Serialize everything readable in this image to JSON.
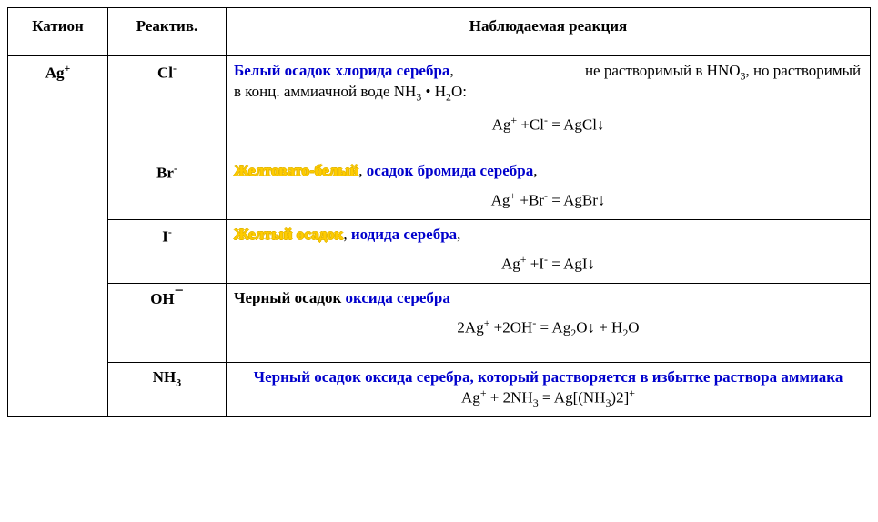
{
  "headers": {
    "cation": "Катион",
    "reagent": "Реактив.",
    "reaction": "Наблюдаемая реакция"
  },
  "cation": "Ag+",
  "rows": [
    {
      "reagent_html": "Cl<sup>-</sup>",
      "highlight_html": "Белый осадок хлорида серебра",
      "highlight_class": "blue bold",
      "tail_html": "<span class=\"gap\"></span>не  растворимый  в HNO<sub>3</sub>,  но растворимый в конц. аммиачной воде  NH<sub>3</sub> • H<sub>2</sub>O:",
      "equation_html": "Ag<sup>+</sup> +Cl<sup>-</sup> = AgCl↓",
      "extra_padding": true
    },
    {
      "reagent_html": "Br<sup>-</sup>",
      "highlight_html": "Желтовато-белый",
      "highlight_class": "yellow bold",
      "tail_html": "<span class=\"blue bold\">  осадок бромида серебра</span>,",
      "equation_html": "Ag<sup>+</sup> +Br<sup>-</sup> = AgBr↓"
    },
    {
      "reagent_html": "I<sup>-</sup>",
      "highlight_html": "Желтый  осадок",
      "highlight_class": "yellow bold",
      "tail_html": "<span class=\"blue bold\"> иодида серебра</span>,",
      "equation_html": "Ag<sup>+</sup> +I<sup>-</sup> = AgI↓"
    },
    {
      "reagent_html": "OH<span class=\"sup-minus-big\">−</span>",
      "highlight_html": "Черный осадок",
      "highlight_class": "bold",
      "tail_html": " <span class=\"blue bold\">оксида серебра</span>",
      "equation_html": "2Ag<sup>+</sup> +2OH<sup>-</sup> = Ag<sub>2</sub>O↓ + H<sub>2</sub>O",
      "extra_padding": true
    },
    {
      "reagent_html": "NH<sub>3</sub>",
      "full_center_html": "<div class=\"center\"><span class=\"blue bold\">Черный осадок оксида серебра, который растворяется  в избытке раствора аммиака</span><br>Ag<sup>+</sup> + 2NH<sub>3</sub> = Ag[(NH<sub>3</sub>)2]<sup>+</sup></div>"
    }
  ]
}
